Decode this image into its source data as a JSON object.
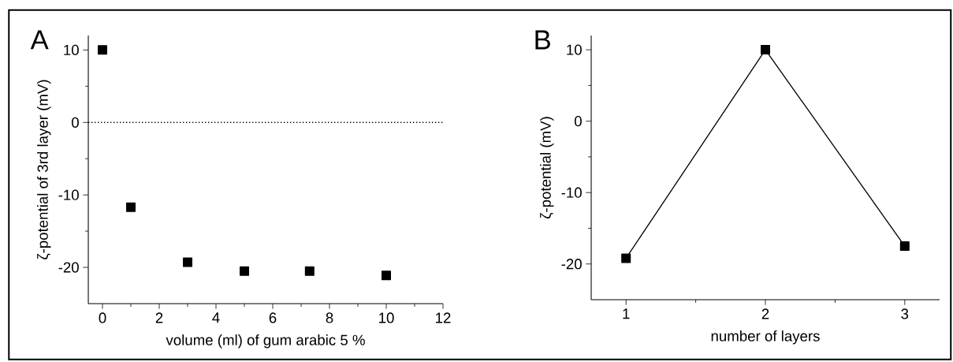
{
  "chart_data": [
    {
      "type": "scatter",
      "annotations": [
        "A"
      ],
      "xlabel": "volume (ml) of gum arabic 5 %",
      "ylabel": "ζ-potential of 3rd layer (mV)",
      "x": [
        0,
        1,
        3,
        5,
        7.3,
        10
      ],
      "series": [
        {
          "color": "#000000",
          "values": [
            10,
            -11.7,
            -19.3,
            -20.5,
            -20.5,
            -21.1
          ]
        }
      ],
      "xlim": [
        -0.5,
        12
      ],
      "ylim": [
        -25,
        12
      ],
      "xticks": [
        0,
        {
          "value": 1,
          "label": null
        },
        2,
        {
          "value": 3,
          "label": null
        },
        4,
        {
          "value": 5,
          "label": null
        },
        6,
        {
          "value": 7,
          "label": null
        },
        8,
        {
          "value": 9,
          "label": null
        },
        10,
        {
          "value": 11,
          "label": null
        },
        12
      ],
      "yticks": [
        -20,
        {
          "value": -15,
          "label": null
        },
        -10,
        {
          "value": -5,
          "label": null
        },
        0,
        {
          "value": 5,
          "label": null
        },
        10
      ],
      "ref_lines": [
        {
          "axis": "y",
          "value": 0,
          "line_style": "dotted",
          "color": "#000000"
        }
      ],
      "marker": "square",
      "grid": false
    },
    {
      "type": "line",
      "annotations": [
        "B"
      ],
      "xlabel": "number of layers",
      "ylabel": "ζ-potential (mV)",
      "x": [
        1,
        2,
        3
      ],
      "series": [
        {
          "color": "#000000",
          "values": [
            -19.2,
            10,
            -17.5
          ]
        }
      ],
      "xlim": [
        0.75,
        3.25
      ],
      "ylim": [
        -25,
        12
      ],
      "xticks": [
        1,
        {
          "value": 1.5,
          "label": null
        },
        2,
        {
          "value": 2.5,
          "label": null
        },
        3
      ],
      "yticks": [
        -20,
        {
          "value": -15,
          "label": null
        },
        -10,
        {
          "value": -5,
          "label": null
        },
        0,
        {
          "value": 5,
          "label": null
        },
        10
      ],
      "marker": "square",
      "line_style": "solid",
      "grid": false
    }
  ]
}
